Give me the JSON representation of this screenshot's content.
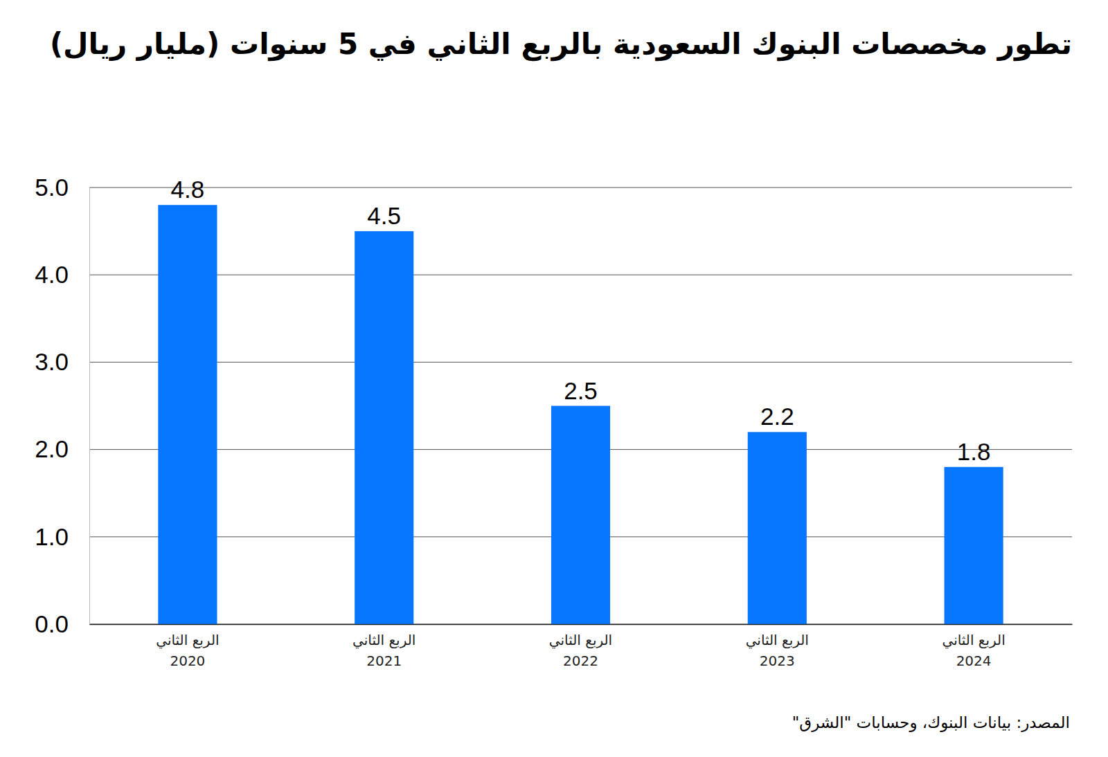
{
  "chart_data": {
    "type": "bar",
    "title": "تطور مخصصات البنوك السعودية بالربع الثاني في 5 سنوات (مليار ريال)",
    "source": "المصدر: بيانات البنوك، وحسابات \"الشرق\"",
    "categories": [
      "الربع الثاني\n2020",
      "الربع الثاني\n2021",
      "الربع الثاني\n2022",
      "الربع الثاني\n2023",
      "الربع الثاني\n2024"
    ],
    "values": [
      4.8,
      4.5,
      2.5,
      2.2,
      1.8
    ],
    "color": "#0877ff",
    "ylim": [
      0,
      5
    ],
    "yticks": [
      {
        "value": 0,
        "label": "0.0"
      },
      {
        "value": 1,
        "label": "1.0"
      },
      {
        "value": 2,
        "label": "2.0"
      },
      {
        "value": 3,
        "label": "3.0"
      },
      {
        "value": 4,
        "label": "4.0"
      },
      {
        "value": 5,
        "label": "5.0"
      }
    ],
    "grid": true,
    "data_labels": true
  }
}
